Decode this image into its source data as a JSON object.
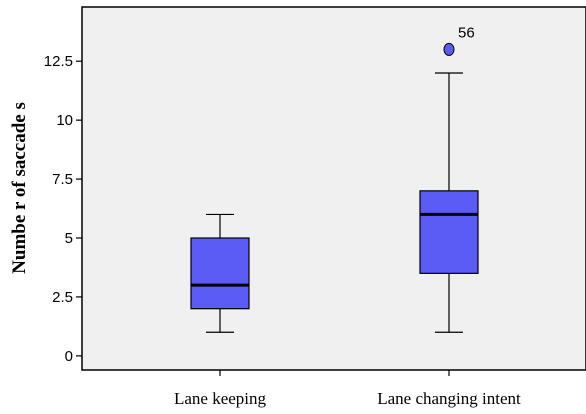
{
  "chart_data": {
    "type": "boxplot",
    "ylabel": "Numbe r of saccade s",
    "ylim": [
      -0.6,
      14.8
    ],
    "yticks": [
      0,
      2.5,
      5,
      7.5,
      10,
      12.5
    ],
    "ytick_labels": [
      "0",
      "2.5",
      "5",
      "7.5",
      "10",
      "12.5"
    ],
    "categories": [
      "Lane keeping",
      "Lane changing intent"
    ],
    "boxes": [
      {
        "category": "Lane keeping",
        "whisker_low": 1,
        "q1": 2,
        "median": 3,
        "q3": 5,
        "whisker_high": 6,
        "outliers": []
      },
      {
        "category": "Lane changing intent",
        "whisker_low": 1,
        "q1": 3.5,
        "median": 6,
        "q3": 7,
        "whisker_high": 12,
        "outliers": [
          {
            "value": 13,
            "label": "56"
          }
        ]
      }
    ],
    "box_color": "#5b5bf5",
    "plot_background": "#f0f0f0",
    "grid": false,
    "legend": "none"
  }
}
